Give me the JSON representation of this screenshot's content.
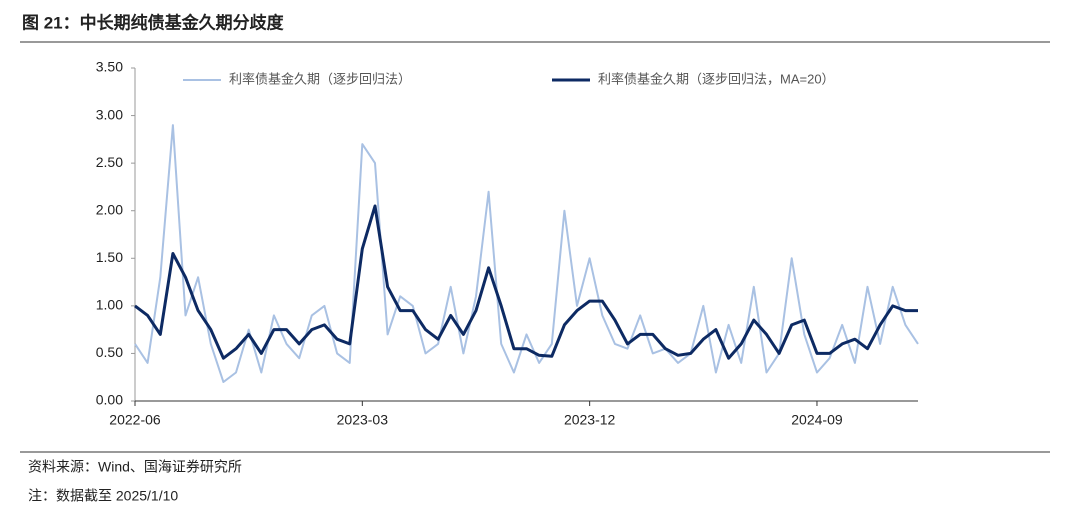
{
  "chart_data": {
    "type": "line",
    "title": "图 21：中长期纯债基金久期分歧度",
    "source": "资料来源：Wind、国海证券研究所",
    "note": "注：数据截至 2025/1/10",
    "categories": [
      "2022-06",
      null,
      null,
      null,
      null,
      null,
      null,
      null,
      null,
      null,
      null,
      null,
      null,
      null,
      null,
      null,
      null,
      null,
      "2023-03",
      null,
      null,
      null,
      null,
      null,
      null,
      null,
      null,
      null,
      null,
      null,
      null,
      null,
      null,
      null,
      null,
      null,
      "2023-12",
      null,
      null,
      null,
      null,
      null,
      null,
      null,
      null,
      null,
      null,
      null,
      null,
      null,
      null,
      null,
      null,
      null,
      "2024-09",
      null,
      null,
      null,
      null,
      null,
      null,
      null,
      null
    ],
    "series": [
      {
        "name": "利率债基金久期（逐步回归法）",
        "color": "#a9c1e3",
        "width": 2,
        "values": [
          0.6,
          0.4,
          1.3,
          2.9,
          0.9,
          1.3,
          0.6,
          0.2,
          0.3,
          0.75,
          0.3,
          0.9,
          0.6,
          0.45,
          0.9,
          1.0,
          0.5,
          0.4,
          2.7,
          2.5,
          0.7,
          1.1,
          1.0,
          0.5,
          0.6,
          1.2,
          0.5,
          1.1,
          2.2,
          0.6,
          0.3,
          0.7,
          0.4,
          0.6,
          2.0,
          1.0,
          1.5,
          0.9,
          0.6,
          0.55,
          0.9,
          0.5,
          0.55,
          0.4,
          0.5,
          1.0,
          0.3,
          0.8,
          0.4,
          1.2,
          0.3,
          0.5,
          1.5,
          0.7,
          0.3,
          0.45,
          0.8,
          0.4,
          1.2,
          0.6,
          1.2,
          0.8,
          0.6
        ]
      },
      {
        "name": "利率债基金久期（逐步回归法，MA=20）",
        "color": "#0d2a63",
        "width": 3,
        "values": [
          1.0,
          0.9,
          0.7,
          1.55,
          1.3,
          0.95,
          0.75,
          0.45,
          0.55,
          0.7,
          0.5,
          0.75,
          0.75,
          0.6,
          0.75,
          0.8,
          0.65,
          0.6,
          1.6,
          2.05,
          1.2,
          0.95,
          0.95,
          0.75,
          0.65,
          0.9,
          0.7,
          0.95,
          1.4,
          1.0,
          0.55,
          0.55,
          0.48,
          0.47,
          0.8,
          0.95,
          1.05,
          1.05,
          0.85,
          0.6,
          0.7,
          0.7,
          0.55,
          0.48,
          0.5,
          0.65,
          0.75,
          0.45,
          0.6,
          0.85,
          0.7,
          0.5,
          0.8,
          0.85,
          0.5,
          0.5,
          0.6,
          0.65,
          0.55,
          0.8,
          1.0,
          0.95,
          0.95
        ]
      }
    ],
    "ylim": [
      0,
      3.5
    ],
    "yticks": [
      {
        "value": 0,
        "label": "0.00"
      },
      {
        "value": 0.5,
        "label": "0.50"
      },
      {
        "value": 1,
        "label": "1.00"
      },
      {
        "value": 1.5,
        "label": "1.50"
      },
      {
        "value": 2,
        "label": "2.00"
      },
      {
        "value": 2.5,
        "label": "2.50"
      },
      {
        "value": 3,
        "label": "3.00"
      },
      {
        "value": 3.5,
        "label": "3.50"
      }
    ],
    "grid": false
  }
}
